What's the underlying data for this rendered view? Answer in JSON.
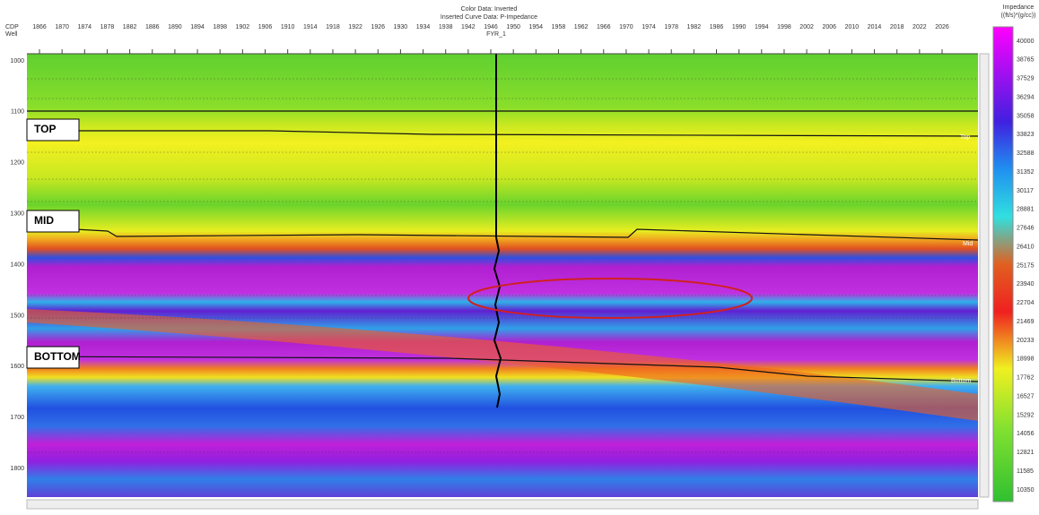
{
  "header": {
    "color_data": "Color Data: Inverted",
    "curve_data": "Inserted Curve Data: P-Impedance"
  },
  "axis": {
    "cdp_label": "CDP",
    "well_label": "Well",
    "cdp": [
      1866,
      1870,
      1874,
      1878,
      1882,
      1886,
      1890,
      1894,
      1898,
      1902,
      1906,
      1910,
      1914,
      1918,
      1922,
      1926,
      1930,
      1934,
      1938,
      1942,
      1946,
      1950,
      1954,
      1958,
      1962,
      1966,
      1970,
      1974,
      1978,
      1982,
      1986,
      1990,
      1994,
      1998,
      2002,
      2006,
      2010,
      2014,
      2018,
      2022,
      2026
    ],
    "depth": [
      1000,
      1100,
      1200,
      1300,
      1400,
      1500,
      1600,
      1700,
      1800
    ]
  },
  "well": "FYR_1",
  "horizons": [
    {
      "label": "TOP",
      "tag": "Top"
    },
    {
      "label": "MID",
      "tag": "Mid"
    },
    {
      "label": "BOTTOM",
      "tag": "Bottom"
    }
  ],
  "colorbar": {
    "title": "Impedance",
    "unit": "((ft/s)*(g/cc))",
    "values": [
      40000,
      38765,
      37529,
      36294,
      35058,
      33823,
      32588,
      31352,
      30117,
      28881,
      27646,
      26410,
      25175,
      23940,
      22704,
      21469,
      20233,
      18998,
      17762,
      16527,
      15292,
      14056,
      12821,
      11585,
      10350
    ]
  }
}
